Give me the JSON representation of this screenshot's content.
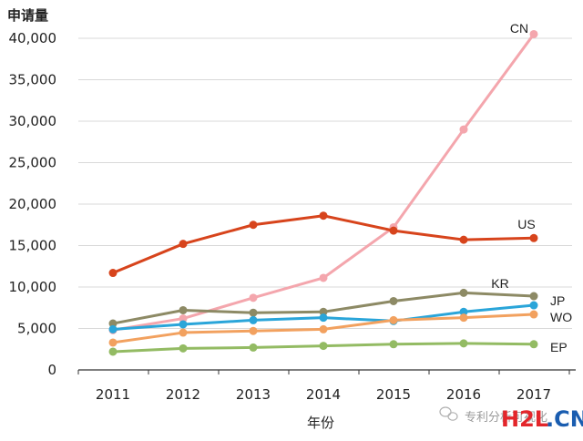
{
  "chart_data": {
    "type": "line",
    "ylabel": "申请量",
    "xlabel": "年份",
    "ylim": [
      0,
      40000
    ],
    "yticks": [
      0,
      5000,
      10000,
      15000,
      20000,
      25000,
      30000,
      35000,
      40000
    ],
    "ytick_labels": [
      "0",
      "5,000",
      "10,000",
      "15,000",
      "20,000",
      "25,000",
      "30,000",
      "35,000",
      "40,000"
    ],
    "categories": [
      "2011",
      "2012",
      "2013",
      "2014",
      "2015",
      "2016",
      "2017"
    ],
    "grid": "horizontal",
    "series": [
      {
        "name": "CN",
        "color": "#f4a6ad",
        "values": [
          4800,
          6200,
          8700,
          11100,
          17200,
          29000,
          40500
        ]
      },
      {
        "name": "US",
        "color": "#d7441c",
        "values": [
          11700,
          15200,
          17500,
          18600,
          16800,
          15700,
          15900
        ]
      },
      {
        "name": "KR",
        "color": "#8d8a65",
        "values": [
          5600,
          7200,
          6900,
          7000,
          8300,
          9300,
          8900
        ]
      },
      {
        "name": "JP",
        "color": "#2aa5d9",
        "values": [
          4900,
          5500,
          6000,
          6300,
          5900,
          7000,
          7800
        ]
      },
      {
        "name": "WO",
        "color": "#f2a15f",
        "values": [
          3300,
          4500,
          4700,
          4900,
          6000,
          6300,
          6700
        ]
      },
      {
        "name": "EP",
        "color": "#93bb63",
        "values": [
          2200,
          2600,
          2700,
          2900,
          3100,
          3200,
          3100
        ]
      }
    ]
  },
  "watermark": {
    "text": "专利分析可视化",
    "logo_h2l": "H2L",
    "logo_cn": ".CN",
    "logo_h2l_color": "#e3262b",
    "logo_cn_color": "#1a5db0"
  }
}
